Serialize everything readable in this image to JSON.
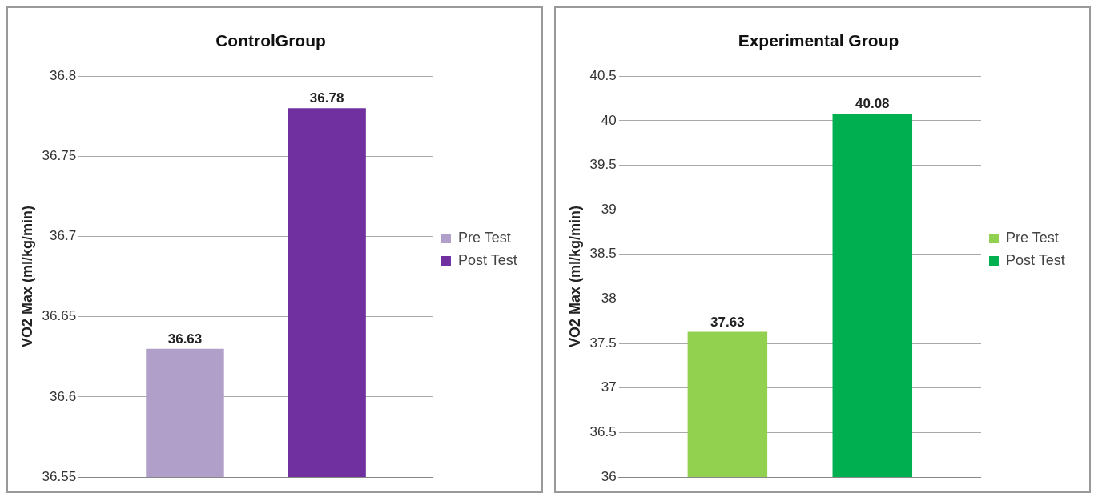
{
  "chart_data": [
    {
      "type": "bar",
      "title": "ControlGroup",
      "ylabel": "VO2 Max (ml/kg/min)",
      "categories": [
        null
      ],
      "series": [
        {
          "name": "Pre Test",
          "color": "#b09fc8",
          "values": [
            36.63
          ]
        },
        {
          "name": "Post Test",
          "color": "#7030a0",
          "values": [
            36.78
          ]
        }
      ],
      "ylim": [
        36.55,
        36.8
      ],
      "yticks": [
        36.55,
        36.6,
        36.65,
        36.7,
        36.75,
        36.8
      ],
      "grid": "y",
      "legend": "right",
      "data_labels": true
    },
    {
      "type": "bar",
      "title": "Experimental Group",
      "ylabel": "VO2 Max (ml/kg/min)",
      "categories": [
        null
      ],
      "series": [
        {
          "name": "Pre Test",
          "color": "#92d050",
          "values": [
            37.63
          ]
        },
        {
          "name": "Post Test",
          "color": "#00b050",
          "values": [
            40.08
          ]
        }
      ],
      "ylim": [
        36,
        40.5
      ],
      "yticks": [
        36,
        36.5,
        37,
        37.5,
        38,
        38.5,
        39,
        39.5,
        40,
        40.5
      ],
      "grid": "y",
      "legend": "right",
      "data_labels": true
    }
  ]
}
